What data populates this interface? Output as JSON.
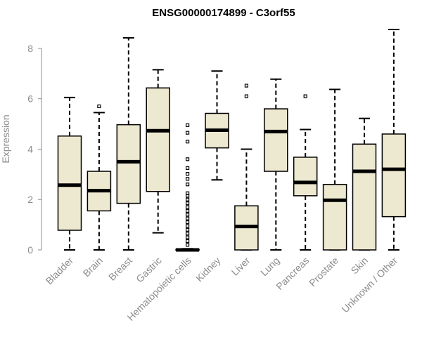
{
  "chart_data": {
    "type": "boxplot",
    "title": "ENSG00000174899 - C3orf55",
    "xlabel": "",
    "ylabel": "Expression",
    "ylim": [
      0,
      8.75
    ],
    "yticks": [
      0,
      2,
      4,
      6,
      8
    ],
    "grid": false,
    "colors": {
      "box_fill": "#ede8d0",
      "stroke": "#000000",
      "axis_text": "#8c8c8c"
    },
    "categories": [
      "Bladder",
      "Brain",
      "Breast",
      "Gastric",
      "Hematopoietic cells",
      "Kidney",
      "Liver",
      "Lung",
      "Pancreas",
      "Prostate",
      "Skin",
      "Unknown / Other"
    ],
    "boxes": [
      {
        "name": "Bladder",
        "whisker_low": 0,
        "q1": 0.78,
        "median": 2.57,
        "q3": 4.52,
        "whisker_high": 6.05,
        "outliers": []
      },
      {
        "name": "Brain",
        "whisker_low": 0,
        "q1": 1.55,
        "median": 2.35,
        "q3": 3.12,
        "whisker_high": 5.45,
        "outliers": [
          5.7
        ]
      },
      {
        "name": "Breast",
        "whisker_low": 0,
        "q1": 1.85,
        "median": 3.5,
        "q3": 4.97,
        "whisker_high": 8.42,
        "outliers": []
      },
      {
        "name": "Gastric",
        "whisker_low": 0.68,
        "q1": 2.32,
        "median": 4.73,
        "q3": 6.43,
        "whisker_high": 7.15,
        "outliers": []
      },
      {
        "name": "Hematopoietic cells",
        "whisker_low": 0,
        "q1": 0,
        "median": 0,
        "q3": 0.02,
        "whisker_high": 0.05,
        "outliers": [
          0.2,
          0.35,
          0.5,
          0.65,
          0.8,
          0.95,
          1.1,
          1.25,
          1.4,
          1.55,
          1.7,
          1.85,
          2.0,
          2.15,
          2.25,
          2.6,
          2.82,
          3.02,
          3.25,
          3.6,
          4.3,
          4.65,
          4.95
        ]
      },
      {
        "name": "Kidney",
        "whisker_low": 2.78,
        "q1": 4.05,
        "median": 4.75,
        "q3": 5.42,
        "whisker_high": 7.1,
        "outliers": []
      },
      {
        "name": "Liver",
        "whisker_low": 0,
        "q1": 0,
        "median": 0.93,
        "q3": 1.75,
        "whisker_high": 4.0,
        "outliers": [
          6.1,
          6.52
        ]
      },
      {
        "name": "Lung",
        "whisker_low": 0,
        "q1": 3.12,
        "median": 4.7,
        "q3": 5.6,
        "whisker_high": 6.78,
        "outliers": []
      },
      {
        "name": "Pancreas",
        "whisker_low": 0,
        "q1": 2.15,
        "median": 2.68,
        "q3": 3.68,
        "whisker_high": 4.78,
        "outliers": [
          6.1
        ]
      },
      {
        "name": "Prostate",
        "whisker_low": 0,
        "q1": 0,
        "median": 1.97,
        "q3": 2.6,
        "whisker_high": 6.37,
        "outliers": []
      },
      {
        "name": "Skin",
        "whisker_low": 0,
        "q1": 0,
        "median": 3.12,
        "q3": 4.2,
        "whisker_high": 5.22,
        "outliers": []
      },
      {
        "name": "Unknown / Other",
        "whisker_low": 0,
        "q1": 1.32,
        "median": 3.2,
        "q3": 4.6,
        "whisker_high": 8.75,
        "outliers": []
      }
    ]
  }
}
